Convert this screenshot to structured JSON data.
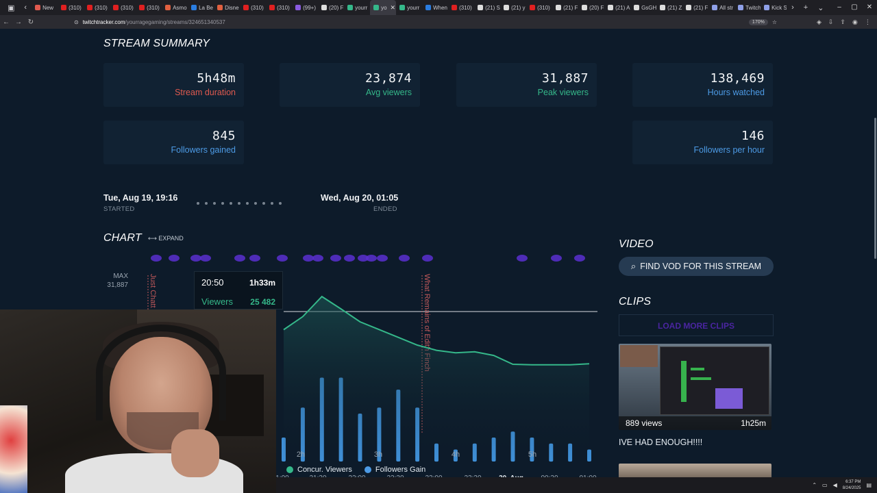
{
  "browser": {
    "tabs": [
      {
        "label": "New",
        "color": "#e05a4f"
      },
      {
        "label": "(310)",
        "color": "#e02020"
      },
      {
        "label": "(310)",
        "color": "#e02020"
      },
      {
        "label": "(310)",
        "color": "#e02020"
      },
      {
        "label": "(310)",
        "color": "#e02020"
      },
      {
        "label": "Asmo",
        "color": "#e06040"
      },
      {
        "label": "La Be",
        "color": "#2a7de1"
      },
      {
        "label": "Disne",
        "color": "#e06040"
      },
      {
        "label": "(310)",
        "color": "#e02020"
      },
      {
        "label": "(310)",
        "color": "#e02020"
      },
      {
        "label": "(99+)",
        "color": "#8a5be0"
      },
      {
        "label": "(20) F",
        "color": "#dddddd"
      },
      {
        "label": "yourr",
        "color": "#35b88a"
      },
      {
        "label": "yo",
        "color": "#35b88a",
        "active": true
      },
      {
        "label": "yourr",
        "color": "#35b88a"
      },
      {
        "label": "When",
        "color": "#2a7de1"
      },
      {
        "label": "(310)",
        "color": "#e02020"
      },
      {
        "label": "(21) S",
        "color": "#dddddd"
      },
      {
        "label": "(21) y",
        "color": "#dddddd"
      },
      {
        "label": "(310)",
        "color": "#e02020"
      },
      {
        "label": "(21) F",
        "color": "#dddddd"
      },
      {
        "label": "(20) F",
        "color": "#dddddd"
      },
      {
        "label": "(21) A",
        "color": "#dddddd"
      },
      {
        "label": "GsGH",
        "color": "#dddddd"
      },
      {
        "label": "(21) Z",
        "color": "#dddddd"
      },
      {
        "label": "(21) F",
        "color": "#dddddd"
      },
      {
        "label": "All str",
        "color": "#8fa0e8"
      },
      {
        "label": "Twitch",
        "color": "#8fa0e8"
      },
      {
        "label": "Kick S",
        "color": "#8fa0e8"
      }
    ],
    "url_host": "twitchtracker.com",
    "url_path": "/yourragegaming/streams/324651340537",
    "zoom": "170%"
  },
  "summary": {
    "heading": "STREAM SUMMARY",
    "stats": [
      {
        "value": "5h48m",
        "label": "Stream duration",
        "color": "#e05a4f"
      },
      {
        "value": "23,874",
        "label": "Avg viewers",
        "color": "#35b88a"
      },
      {
        "value": "31,887",
        "label": "Peak viewers",
        "color": "#35b88a"
      },
      {
        "value": "138,469",
        "label": "Hours watched",
        "color": "#4d9be6"
      },
      {
        "value": "845",
        "label": "Followers gained",
        "color": "#4d9be6"
      },
      {
        "value": "146",
        "label": "Followers per hour",
        "color": "#4d9be6"
      }
    ],
    "started": {
      "date": "Tue, Aug 19, 19:16",
      "label": "STARTED"
    },
    "ended": {
      "date": "Wed, Aug 20, 01:05",
      "label": "ENDED"
    }
  },
  "chart_section": {
    "heading": "CHART",
    "expand_label": "EXPAND",
    "max_label": "MAX",
    "max_value": "31,887",
    "tooltip": {
      "time": "20:50",
      "duration": "1h33m",
      "series": "Viewers",
      "value": "25 482"
    },
    "category_markers": [
      "Just Chatt",
      "What Remains of Edith Finch"
    ],
    "x_ticks_top": [
      "2h",
      "3h",
      "4h",
      "5h"
    ],
    "x_ticks_bottom": [
      "1:00",
      "21:30",
      "22:00",
      "22:30",
      "23:00",
      "23:30",
      "20. Aug",
      "00:30",
      "01:00"
    ],
    "legend": [
      {
        "label": "Concur. Viewers",
        "color": "#35b88a"
      },
      {
        "label": "Followers Gain",
        "color": "#4d9be6"
      }
    ]
  },
  "chart_data": {
    "type": "line",
    "title": "",
    "xlabel": "",
    "ylabel": "",
    "x": [
      "20:50",
      "21:15",
      "21:30",
      "21:45",
      "22:00",
      "22:15",
      "22:30",
      "22:45",
      "23:00",
      "23:15",
      "23:30",
      "23:45",
      "00:00",
      "00:15",
      "00:30",
      "00:45",
      "01:00"
    ],
    "series": [
      {
        "name": "Concur. Viewers",
        "type": "line",
        "values": [
          25482,
          28000,
          31887,
          29500,
          27000,
          25500,
          24000,
          22500,
          21500,
          21000,
          21200,
          20500,
          18800,
          18700,
          18700,
          18700,
          18900
        ]
      },
      {
        "name": "Followers Gain",
        "type": "bar",
        "values": [
          4,
          9,
          14,
          14,
          8,
          9,
          12,
          9,
          3,
          2,
          3,
          4,
          5,
          4,
          3,
          3,
          2
        ]
      }
    ],
    "ylim": [
      0,
      36000
    ],
    "grid": false,
    "legend_position": "bottom"
  },
  "video": {
    "heading": "VIDEO",
    "button": "FIND VOD FOR THIS STREAM"
  },
  "clips": {
    "heading": "CLIPS",
    "load_more": "LOAD MORE CLIPS",
    "items": [
      {
        "views": "889 views",
        "duration": "1h25m",
        "title": "IVE HAD ENOUGH!!!!"
      }
    ]
  },
  "taskbar": {
    "time": "6:37 PM",
    "date": "8/24/2025"
  }
}
